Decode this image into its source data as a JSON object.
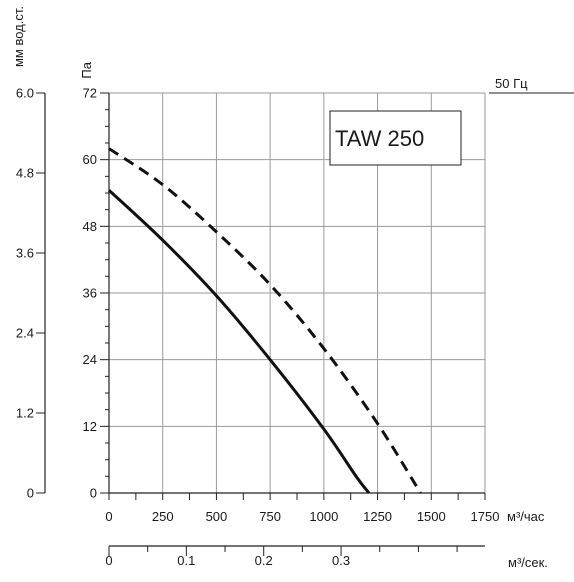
{
  "chart_data": {
    "type": "line",
    "title": "TAW 250",
    "frequency_label": "50 Гц",
    "x": {
      "label": "м³/час",
      "range": [
        0,
        1750
      ],
      "ticks": [
        0,
        250,
        500,
        750,
        1000,
        1250,
        1500,
        1750
      ],
      "tick_labels": [
        "0",
        "250",
        "500",
        "750",
        "1000",
        "1250",
        "1500",
        "1750"
      ],
      "minor_step": 125
    },
    "x2": {
      "label": "м³/сек.",
      "range": [
        0,
        0.4861
      ],
      "ticks": [
        0,
        0.1,
        0.2,
        0.3
      ],
      "tick_labels": [
        "0",
        "0.1",
        "0.2",
        "0.3"
      ],
      "minor_step": 0.05
    },
    "y": {
      "label": "Па",
      "range": [
        0,
        72
      ],
      "ticks": [
        0,
        12,
        24,
        36,
        48,
        60,
        72
      ],
      "tick_labels": [
        "0",
        "12",
        "24",
        "36",
        "48",
        "60",
        "72"
      ],
      "minor_step": 3
    },
    "y2": {
      "label": "мм вод.ст.",
      "range": [
        0,
        6.0
      ],
      "ticks": [
        0,
        1.2,
        2.4,
        3.6,
        4.8,
        6.0
      ],
      "tick_labels": [
        "0",
        "1.2",
        "2.4",
        "3.6",
        "4.8",
        "6.0"
      ]
    },
    "grid": true,
    "series": [
      {
        "style": "solid",
        "points": [
          [
            0,
            54.5
          ],
          [
            250,
            45.5
          ],
          [
            500,
            35.5
          ],
          [
            750,
            24
          ],
          [
            1000,
            11.5
          ],
          [
            1150,
            3
          ],
          [
            1210,
            0
          ]
        ]
      },
      {
        "style": "dashed",
        "points": [
          [
            0,
            62
          ],
          [
            250,
            55.5
          ],
          [
            500,
            47
          ],
          [
            750,
            37.5
          ],
          [
            1000,
            26
          ],
          [
            1250,
            12.5
          ],
          [
            1450,
            0
          ]
        ]
      }
    ]
  }
}
